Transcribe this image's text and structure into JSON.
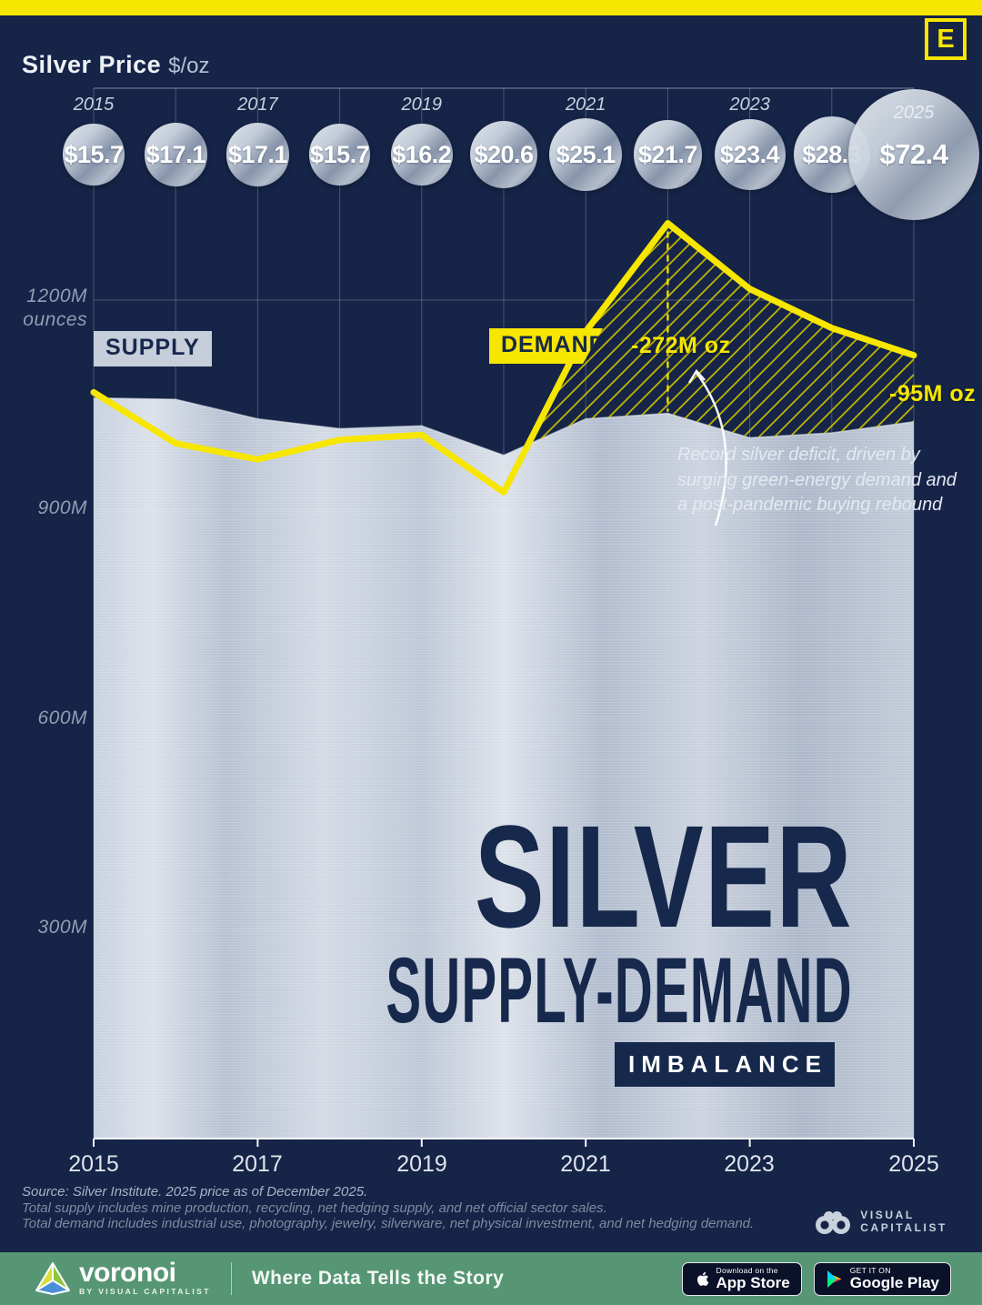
{
  "colors": {
    "yellow": "#f6e600",
    "navy_background": "#152447",
    "title_navy": "#16284c",
    "silver_light": "#dbe1ea",
    "silver_dark": "#aab5c7",
    "footer_green": "#569675",
    "badge_background": "#0a1128"
  },
  "logo": {
    "e": "E"
  },
  "header": {
    "title": "Silver Price",
    "unit": "$/oz"
  },
  "price_timeline": {
    "items": [
      {
        "year": "2015",
        "price": "$15.7",
        "value": 15.7,
        "show_year": true
      },
      {
        "year": "2016",
        "price": "$17.1",
        "value": 17.1,
        "show_year": false
      },
      {
        "year": "2017",
        "price": "$17.1",
        "value": 17.1,
        "show_year": true
      },
      {
        "year": "2018",
        "price": "$15.7",
        "value": 15.7,
        "show_year": false
      },
      {
        "year": "2019",
        "price": "$16.2",
        "value": 16.2,
        "show_year": true
      },
      {
        "year": "2020",
        "price": "$20.6",
        "value": 20.6,
        "show_year": false
      },
      {
        "year": "2021",
        "price": "$25.1",
        "value": 25.1,
        "show_year": true
      },
      {
        "year": "2022",
        "price": "$21.7",
        "value": 21.7,
        "show_year": false
      },
      {
        "year": "2023",
        "price": "$23.4",
        "value": 23.4,
        "show_year": true
      },
      {
        "year": "2024",
        "price": "$28.3",
        "value": 28.3,
        "show_year": false
      },
      {
        "year": "2025",
        "price": "$72.4",
        "value": 72.4,
        "show_year": "inside"
      }
    ]
  },
  "chart_data": {
    "type": "area+line",
    "title": "Silver Supply-Demand Imbalance",
    "x": [
      2015,
      2016,
      2017,
      2018,
      2019,
      2020,
      2021,
      2022,
      2023,
      2024,
      2025
    ],
    "series": [
      {
        "name": "SUPPLY",
        "type": "area",
        "style": "brushed-silver",
        "values": [
          1060,
          1058,
          1030,
          1016,
          1020,
          978,
          1030,
          1038,
          1003,
          1010,
          1026
        ]
      },
      {
        "name": "DEMAND",
        "type": "line",
        "style": "yellow-line",
        "values": [
          1068,
          995,
          972,
          1000,
          1007,
          925,
          1155,
          1310,
          1216,
          1160,
          1121
        ]
      }
    ],
    "unit": "M ounces",
    "ylim": [
      0,
      1300
    ],
    "yticks": [
      300,
      600,
      900,
      1200
    ],
    "grid": true,
    "deficit_hatch": "area where demand exceeds supply, ~2020 through 2025",
    "annotations": [
      {
        "x": 2022,
        "label": "-272M oz",
        "type": "dashed-deficit-line"
      },
      {
        "x": 2025,
        "label": "-95M oz"
      }
    ]
  },
  "axis": {
    "y_ticks": [
      "1200M",
      "900M",
      "600M",
      "300M"
    ],
    "y_unit": "ounces",
    "x_ticks": [
      "2015",
      "2017",
      "2019",
      "2021",
      "2023",
      "2025"
    ]
  },
  "chart_labels": {
    "supply": "SUPPLY",
    "demand": "DEMAND",
    "deficit_2022": "-272M oz",
    "deficit_2025": "-95M oz",
    "note_lines": [
      "Record silver deficit, driven by",
      "surging green-energy demand and",
      "a post-pandemic buying rebound"
    ]
  },
  "title_block": {
    "line1": "SILVER",
    "line2": "SUPPLY-DEMAND",
    "badge": "IMBALANCE"
  },
  "source": {
    "lines": [
      "Source: Silver Institute. 2025 price as of December 2025.",
      "Total supply includes mine production, recycling, net hedging supply, and net official sector sales.",
      "Total demand includes industrial use, photography, jewelry, silverware, net physical investment, and net hedging demand."
    ]
  },
  "vc_logo": {
    "line1": "VISUAL",
    "line2": "CAPITALIST"
  },
  "footer": {
    "brand": "voronoi",
    "byline": "BY VISUAL CAPITALIST",
    "tagline": "Where Data Tells the Story",
    "app_store": {
      "small": "Download on the",
      "big": "App Store"
    },
    "google_play": {
      "small": "GET IT ON",
      "big": "Google Play"
    }
  }
}
